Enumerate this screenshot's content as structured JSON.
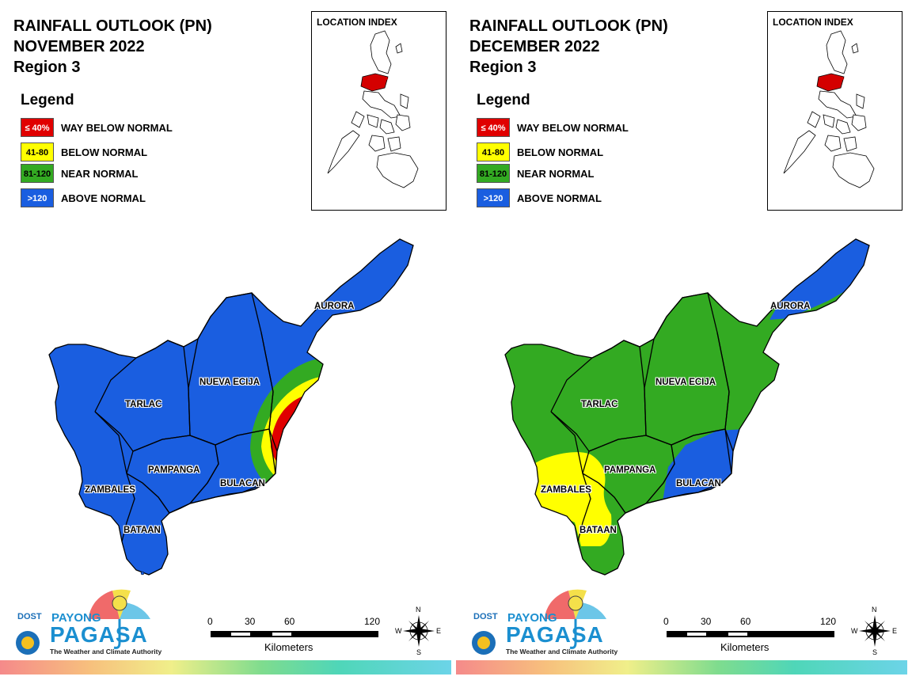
{
  "panels": [
    {
      "title_line1": "RAINFALL OUTLOOK (PN)",
      "title_line2": "NOVEMBER 2022",
      "title_line3": "Region 3",
      "legend_title": "Legend",
      "legend": [
        {
          "swatch": "≤ 40%",
          "label": "WAY BELOW NORMAL",
          "color": "#e00000",
          "text_color": "#ffffff"
        },
        {
          "swatch": "41-80",
          "label": "BELOW NORMAL",
          "color": "#ffff00",
          "text_color": "#000000"
        },
        {
          "swatch": "81-120",
          "label": "NEAR NORMAL",
          "color": "#33aa22",
          "text_color": "#000000"
        },
        {
          "swatch": ">120",
          "label": "ABOVE NORMAL",
          "color": "#1a5ee0",
          "text_color": "#ffffff"
        }
      ],
      "location_index_title": "LOCATION INDEX",
      "provinces": {
        "aurora": "AURORA",
        "nueva_ecija": "NUEVA ECIJA",
        "tarlac": "TARLAC",
        "pampanga": "PAMPANGA",
        "bulacan": "BULACAN",
        "zambales": "ZAMBALES",
        "bataan": "BATAAN"
      },
      "scale": {
        "ticks": [
          "0",
          "30",
          "60",
          "120"
        ],
        "units": "Kilometers"
      },
      "compass": {
        "n": "N",
        "s": "S",
        "e": "E",
        "w": "W"
      },
      "logo": {
        "dost": "DOST",
        "payong": "PAYONG",
        "pagasa": "PAGASA",
        "tagline": "The Weather and Climate Authority"
      }
    },
    {
      "title_line1": "RAINFALL OUTLOOK (PN)",
      "title_line2": "DECEMBER 2022",
      "title_line3": "Region 3",
      "legend_title": "Legend",
      "legend": [
        {
          "swatch": "≤ 40%",
          "label": "WAY BELOW NORMAL",
          "color": "#e00000",
          "text_color": "#ffffff"
        },
        {
          "swatch": "41-80",
          "label": "BELOW NORMAL",
          "color": "#ffff00",
          "text_color": "#000000"
        },
        {
          "swatch": "81-120",
          "label": "NEAR NORMAL",
          "color": "#33aa22",
          "text_color": "#000000"
        },
        {
          "swatch": ">120",
          "label": "ABOVE NORMAL",
          "color": "#1a5ee0",
          "text_color": "#ffffff"
        }
      ],
      "location_index_title": "LOCATION INDEX",
      "provinces": {
        "aurora": "AURORA",
        "nueva_ecija": "NUEVA ECIJA",
        "tarlac": "TARLAC",
        "pampanga": "PAMPANGA",
        "bulacan": "BULACAN",
        "zambales": "ZAMBALES",
        "bataan": "BATAAN"
      },
      "scale": {
        "ticks": [
          "0",
          "30",
          "60",
          "120"
        ],
        "units": "Kilometers"
      },
      "compass": {
        "n": "N",
        "s": "S",
        "e": "E",
        "w": "W"
      },
      "logo": {
        "dost": "DOST",
        "payong": "PAYONG",
        "pagasa": "PAGASA",
        "tagline": "The Weather and Climate Authority"
      }
    }
  ],
  "colors": {
    "way_below": "#e00000",
    "below": "#ffff00",
    "near": "#33aa22",
    "above": "#1a5ee0",
    "highlight_region": "#d40000"
  }
}
